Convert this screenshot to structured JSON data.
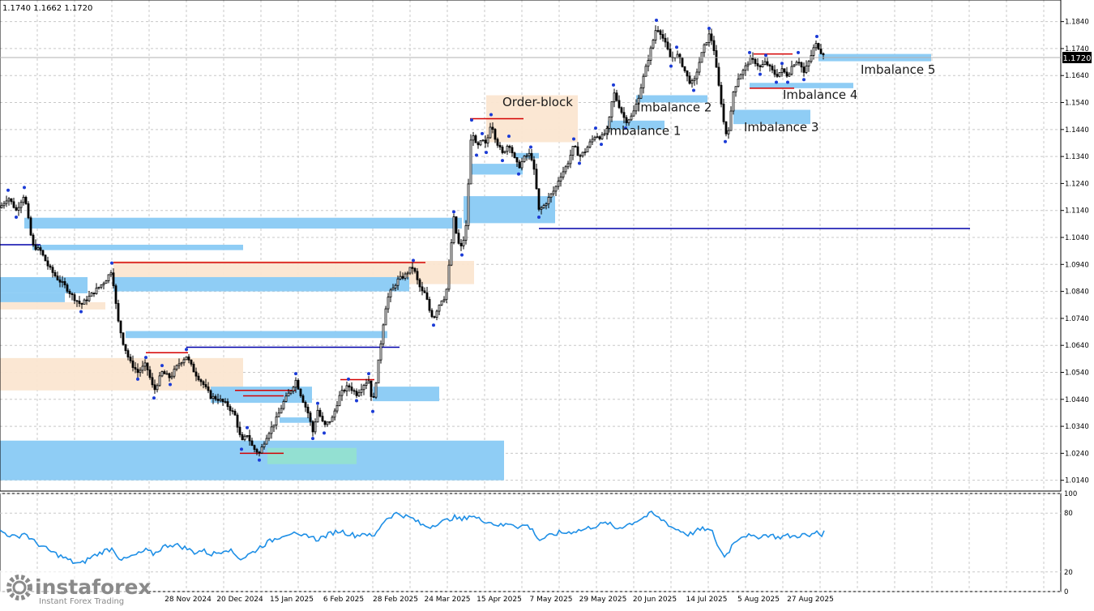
{
  "header": {
    "ohlc": "1.1740 1.1662 1.1720"
  },
  "watermark": {
    "brand": "instaforex",
    "tagline": "Instant Forex Trading"
  },
  "chart_data": [
    {
      "type": "candlestick",
      "grid": true,
      "ylim": [
        1.01,
        1.192
      ],
      "y_ticks": [
        "1.1840",
        "1.1740",
        "1.1640",
        "1.1540",
        "1.1440",
        "1.1340",
        "1.1240",
        "1.1140",
        "1.1040",
        "1.0940",
        "1.0840",
        "1.0740",
        "1.0640",
        "1.0540",
        "1.0440",
        "1.0340",
        "1.0240",
        "1.0140"
      ],
      "current_price": "1.1720",
      "x_labels": [
        "28 Nov 2024",
        "20 Dec 2024",
        "15 Jan 2025",
        "6 Feb 2025",
        "28 Feb 2025",
        "24 Mar 2025",
        "15 Apr 2025",
        "7 May 2025",
        "29 May 2025",
        "20 Jun 2025",
        "14 Jul 2025",
        "5 Aug 2025",
        "27 Aug 2025"
      ],
      "price_path": [
        [
          0,
          1.115
        ],
        [
          10,
          1.119
        ],
        [
          20,
          1.114
        ],
        [
          30,
          1.12
        ],
        [
          40,
          1.101
        ],
        [
          50,
          1.099
        ],
        [
          60,
          1.093
        ],
        [
          70,
          1.089
        ],
        [
          80,
          1.086
        ],
        [
          90,
          1.082
        ],
        [
          100,
          1.079
        ],
        [
          110,
          1.082
        ],
        [
          120,
          1.085
        ],
        [
          130,
          1.088
        ],
        [
          138,
          1.092
        ],
        [
          145,
          1.074
        ],
        [
          152,
          1.065
        ],
        [
          160,
          1.058
        ],
        [
          170,
          1.054
        ],
        [
          180,
          1.057
        ],
        [
          190,
          1.047
        ],
        [
          200,
          1.054
        ],
        [
          210,
          1.052
        ],
        [
          220,
          1.057
        ],
        [
          230,
          1.06
        ],
        [
          240,
          1.054
        ],
        [
          250,
          1.05
        ],
        [
          260,
          1.045
        ],
        [
          270,
          1.044
        ],
        [
          280,
          1.042
        ],
        [
          290,
          1.038
        ],
        [
          298,
          1.028
        ],
        [
          305,
          1.031
        ],
        [
          312,
          1.026
        ],
        [
          320,
          1.024
        ],
        [
          330,
          1.031
        ],
        [
          340,
          1.036
        ],
        [
          350,
          1.043
        ],
        [
          360,
          1.048
        ],
        [
          365,
          1.051
        ],
        [
          372,
          1.045
        ],
        [
          380,
          1.039
        ],
        [
          386,
          1.032
        ],
        [
          392,
          1.04
        ],
        [
          400,
          1.034
        ],
        [
          410,
          1.037
        ],
        [
          420,
          1.046
        ],
        [
          430,
          1.049
        ],
        [
          440,
          1.046
        ],
        [
          450,
          1.05
        ],
        [
          455,
          1.051
        ],
        [
          460,
          1.042
        ],
        [
          465,
          1.053
        ],
        [
          470,
          1.065
        ],
        [
          475,
          1.077
        ],
        [
          480,
          1.083
        ],
        [
          485,
          1.085
        ],
        [
          490,
          1.088
        ],
        [
          500,
          1.09
        ],
        [
          505,
          1.092
        ],
        [
          510,
          1.093
        ],
        [
          515,
          1.088
        ],
        [
          520,
          1.084
        ],
        [
          525,
          1.083
        ],
        [
          530,
          1.077
        ],
        [
          535,
          1.074
        ],
        [
          540,
          1.078
        ],
        [
          545,
          1.081
        ],
        [
          550,
          1.082
        ],
        [
          555,
          1.096
        ],
        [
          560,
          1.111
        ],
        [
          565,
          1.102
        ],
        [
          570,
          1.1
        ],
        [
          575,
          1.108
        ],
        [
          578,
          1.124
        ],
        [
          582,
          1.145
        ],
        [
          588,
          1.137
        ],
        [
          595,
          1.14
        ],
        [
          600,
          1.138
        ],
        [
          606,
          1.147
        ],
        [
          612,
          1.14
        ],
        [
          620,
          1.135
        ],
        [
          628,
          1.139
        ],
        [
          635,
          1.133
        ],
        [
          640,
          1.13
        ],
        [
          648,
          1.134
        ],
        [
          655,
          1.135
        ],
        [
          660,
          1.127
        ],
        [
          665,
          1.114
        ],
        [
          672,
          1.116
        ],
        [
          678,
          1.119
        ],
        [
          685,
          1.122
        ],
        [
          690,
          1.126
        ],
        [
          700,
          1.131
        ],
        [
          708,
          1.138
        ],
        [
          715,
          1.134
        ],
        [
          722,
          1.136
        ],
        [
          728,
          1.139
        ],
        [
          735,
          1.142
        ],
        [
          742,
          1.141
        ],
        [
          750,
          1.144
        ],
        [
          757,
          1.158
        ],
        [
          765,
          1.152
        ],
        [
          772,
          1.147
        ],
        [
          780,
          1.149
        ],
        [
          786,
          1.154
        ],
        [
          792,
          1.161
        ],
        [
          798,
          1.168
        ],
        [
          805,
          1.176
        ],
        [
          810,
          1.182
        ],
        [
          815,
          1.18
        ],
        [
          822,
          1.175
        ],
        [
          828,
          1.17
        ],
        [
          835,
          1.172
        ],
        [
          842,
          1.168
        ],
        [
          850,
          1.162
        ],
        [
          856,
          1.161
        ],
        [
          862,
          1.168
        ],
        [
          868,
          1.174
        ],
        [
          875,
          1.179
        ],
        [
          880,
          1.176
        ],
        [
          885,
          1.164
        ],
        [
          890,
          1.154
        ],
        [
          895,
          1.142
        ],
        [
          900,
          1.145
        ],
        [
          905,
          1.158
        ],
        [
          912,
          1.164
        ],
        [
          918,
          1.166
        ],
        [
          925,
          1.17
        ],
        [
          932,
          1.169
        ],
        [
          938,
          1.167
        ],
        [
          945,
          1.169
        ],
        [
          952,
          1.166
        ],
        [
          958,
          1.164
        ],
        [
          965,
          1.166
        ],
        [
          972,
          1.164
        ],
        [
          978,
          1.168
        ],
        [
          985,
          1.17
        ],
        [
          992,
          1.165
        ],
        [
          998,
          1.169
        ],
        [
          1004,
          1.174
        ],
        [
          1008,
          1.176
        ],
        [
          1012,
          1.173
        ],
        [
          1018,
          1.172
        ]
      ],
      "zones": [
        {
          "kind": "demand",
          "x1": 0,
          "x2": 622,
          "y1": 1.0287,
          "y2": 1.014
        },
        {
          "kind": "demand",
          "x1": 0,
          "x2": 108,
          "y1": 1.0893,
          "y2": 1.0833
        },
        {
          "kind": "demand",
          "x1": 0,
          "x2": 80,
          "y1": 1.0833,
          "y2": 1.08
        },
        {
          "kind": "supply",
          "x1": 0,
          "x2": 130,
          "y1": 1.08,
          "y2": 1.0773
        },
        {
          "kind": "demand",
          "x1": 30,
          "x2": 570,
          "y1": 1.1113,
          "y2": 1.1073
        },
        {
          "kind": "demand",
          "x1": 40,
          "x2": 300,
          "y1": 1.1013,
          "y2": 1.0993
        },
        {
          "kind": "supply",
          "x1": 140,
          "x2": 585,
          "y1": 1.0953,
          "y2": 1.0867
        },
        {
          "kind": "demand",
          "x1": 140,
          "x2": 505,
          "y1": 1.0893,
          "y2": 1.084
        },
        {
          "kind": "demand",
          "x1": 155,
          "x2": 478,
          "y1": 1.0693,
          "y2": 1.0667
        },
        {
          "kind": "supply",
          "x1": 0,
          "x2": 300,
          "y1": 1.0593,
          "y2": 1.0473
        },
        {
          "kind": "demand",
          "x1": 260,
          "x2": 385,
          "y1": 1.0487,
          "y2": 1.0427
        },
        {
          "kind": "demand",
          "x1": 460,
          "x2": 542,
          "y1": 1.0487,
          "y2": 1.0433
        },
        {
          "kind": "demand",
          "x1": 345,
          "x2": 385,
          "y1": 1.0373,
          "y2": 1.0353
        },
        {
          "kind": "teal",
          "x1": 330,
          "x2": 440,
          "y1": 1.026,
          "y2": 1.02
        },
        {
          "kind": "demand",
          "x1": 572,
          "x2": 685,
          "y1": 1.1193,
          "y2": 1.1093
        },
        {
          "kind": "demand",
          "x1": 580,
          "x2": 645,
          "y1": 1.1313,
          "y2": 1.1273
        },
        {
          "kind": "demand",
          "x1": 635,
          "x2": 665,
          "y1": 1.1353,
          "y2": 1.1333
        },
        {
          "kind": "supply",
          "x1": 600,
          "x2": 713,
          "y1": 1.1567,
          "y2": 1.1393
        },
        {
          "kind": "demand",
          "x1": 750,
          "x2": 820,
          "y1": 1.1473,
          "y2": 1.144
        },
        {
          "kind": "demand",
          "x1": 785,
          "x2": 873,
          "y1": 1.1567,
          "y2": 1.154
        },
        {
          "kind": "demand",
          "x1": 905,
          "x2": 1000,
          "y1": 1.1513,
          "y2": 1.146
        },
        {
          "kind": "demand",
          "x1": 925,
          "x2": 1053,
          "y1": 1.1613,
          "y2": 1.1593
        },
        {
          "kind": "demand",
          "x1": 1010,
          "x2": 1149,
          "y1": 1.172,
          "y2": 1.1693
        }
      ],
      "levels": [
        {
          "color": "#d40000",
          "x1": 140,
          "x2": 525,
          "y": 1.0947
        },
        {
          "color": "#d40000",
          "x1": 180,
          "x2": 232,
          "y": 1.0613
        },
        {
          "color": "#0000aa",
          "x1": 230,
          "x2": 493,
          "y": 1.0633
        },
        {
          "color": "#0000aa",
          "x1": 0,
          "x2": 50,
          "y": 1.1013
        },
        {
          "color": "#d40000",
          "x1": 290,
          "x2": 365,
          "y": 1.0473
        },
        {
          "color": "#d40000",
          "x1": 300,
          "x2": 350,
          "y": 1.0453
        },
        {
          "color": "#d40000",
          "x1": 296,
          "x2": 350,
          "y": 1.024
        },
        {
          "color": "#d40000",
          "x1": 420,
          "x2": 462,
          "y": 1.0513
        },
        {
          "color": "#d40000",
          "x1": 580,
          "x2": 646,
          "y": 1.148
        },
        {
          "color": "#0000aa",
          "x1": 665,
          "x2": 1197,
          "y": 1.1073
        },
        {
          "color": "#d40000",
          "x1": 930,
          "x2": 978,
          "y": 1.172
        },
        {
          "color": "#d40000",
          "x1": 925,
          "x2": 980,
          "y": 1.1593
        }
      ],
      "labels": [
        {
          "text": "Order-block",
          "x": 620,
          "y": 1.1527
        },
        {
          "text": "Imbalance 1",
          "x": 748,
          "y": 1.142
        },
        {
          "text": "Imbalance 2",
          "x": 786,
          "y": 1.1507
        },
        {
          "text": "Imbalance 3",
          "x": 918,
          "y": 1.1433
        },
        {
          "text": "Imbalance 4",
          "x": 966,
          "y": 1.1553
        },
        {
          "text": "Imbalance 5",
          "x": 1062,
          "y": 1.1647
        }
      ]
    },
    {
      "type": "line",
      "ylim": [
        0,
        100
      ],
      "y_ticks": [
        "100",
        "80",
        "20",
        "0"
      ],
      "values": [
        [
          0,
          62
        ],
        [
          10,
          58
        ],
        [
          20,
          55
        ],
        [
          30,
          60
        ],
        [
          40,
          52
        ],
        [
          50,
          47
        ],
        [
          60,
          42
        ],
        [
          70,
          38
        ],
        [
          80,
          34
        ],
        [
          90,
          30
        ],
        [
          100,
          28
        ],
        [
          110,
          34
        ],
        [
          120,
          38
        ],
        [
          130,
          42
        ],
        [
          140,
          44
        ],
        [
          145,
          36
        ],
        [
          152,
          32
        ],
        [
          160,
          35
        ],
        [
          170,
          38
        ],
        [
          180,
          42
        ],
        [
          190,
          38
        ],
        [
          200,
          45
        ],
        [
          210,
          48
        ],
        [
          220,
          47
        ],
        [
          230,
          44
        ],
        [
          240,
          40
        ],
        [
          250,
          42
        ],
        [
          260,
          38
        ],
        [
          270,
          40
        ],
        [
          280,
          44
        ],
        [
          290,
          38
        ],
        [
          298,
          33
        ],
        [
          305,
          37
        ],
        [
          312,
          40
        ],
        [
          320,
          45
        ],
        [
          330,
          50
        ],
        [
          340,
          54
        ],
        [
          350,
          58
        ],
        [
          360,
          60
        ],
        [
          370,
          55
        ],
        [
          380,
          58
        ],
        [
          390,
          53
        ],
        [
          400,
          56
        ],
        [
          410,
          60
        ],
        [
          420,
          62
        ],
        [
          430,
          59
        ],
        [
          440,
          57
        ],
        [
          450,
          60
        ],
        [
          460,
          55
        ],
        [
          465,
          60
        ],
        [
          470,
          68
        ],
        [
          475,
          73
        ],
        [
          480,
          76
        ],
        [
          490,
          80
        ],
        [
          500,
          77
        ],
        [
          510,
          74
        ],
        [
          520,
          68
        ],
        [
          530,
          66
        ],
        [
          540,
          70
        ],
        [
          550,
          72
        ],
        [
          560,
          76
        ],
        [
          570,
          73
        ],
        [
          580,
          78
        ],
        [
          590,
          74
        ],
        [
          600,
          72
        ],
        [
          610,
          69
        ],
        [
          620,
          67
        ],
        [
          630,
          70
        ],
        [
          640,
          66
        ],
        [
          650,
          68
        ],
        [
          660,
          60
        ],
        [
          665,
          52
        ],
        [
          672,
          55
        ],
        [
          680,
          57
        ],
        [
          690,
          60
        ],
        [
          700,
          60
        ],
        [
          710,
          62
        ],
        [
          720,
          63
        ],
        [
          730,
          66
        ],
        [
          740,
          68
        ],
        [
          750,
          70
        ],
        [
          760,
          64
        ],
        [
          770,
          67
        ],
        [
          780,
          70
        ],
        [
          790,
          74
        ],
        [
          800,
          78
        ],
        [
          805,
          80
        ],
        [
          812,
          75
        ],
        [
          820,
          72
        ],
        [
          830,
          65
        ],
        [
          840,
          62
        ],
        [
          850,
          58
        ],
        [
          860,
          62
        ],
        [
          870,
          64
        ],
        [
          880,
          60
        ],
        [
          885,
          48
        ],
        [
          890,
          40
        ],
        [
          895,
          36
        ],
        [
          900,
          42
        ],
        [
          905,
          50
        ],
        [
          912,
          55
        ],
        [
          920,
          58
        ],
        [
          930,
          55
        ],
        [
          940,
          57
        ],
        [
          950,
          58
        ],
        [
          960,
          55
        ],
        [
          970,
          57
        ],
        [
          980,
          56
        ],
        [
          990,
          58
        ],
        [
          1000,
          56
        ],
        [
          1008,
          62
        ],
        [
          1012,
          58
        ],
        [
          1018,
          60
        ]
      ]
    }
  ]
}
